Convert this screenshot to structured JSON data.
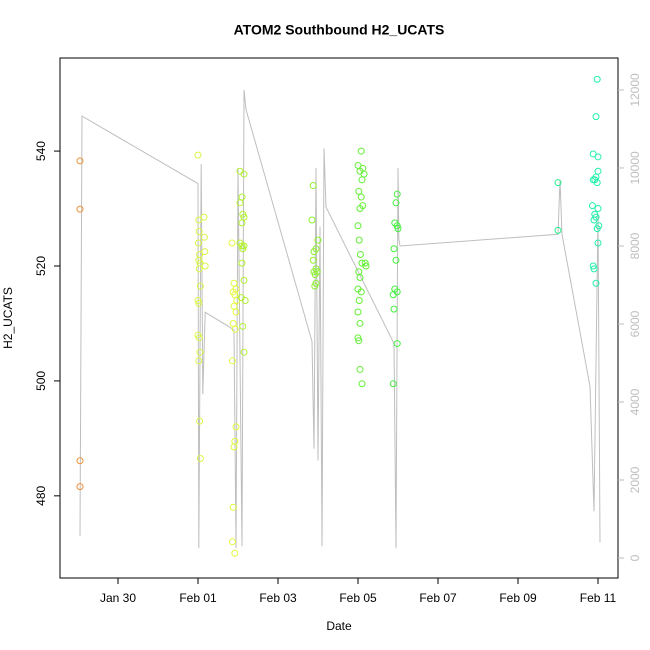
{
  "chart_data": {
    "type": "scatter",
    "title": "ATOM2 Southbound H2_UCATS",
    "x_label": "Date",
    "y_label": "H2_UCATS",
    "xlim": [
      28.55,
      42.5
    ],
    "xticks": [
      {
        "value": 30,
        "label": "Jan 30"
      },
      {
        "value": 32,
        "label": "Feb 01"
      },
      {
        "value": 34,
        "label": "Feb 03"
      },
      {
        "value": 36,
        "label": "Feb 05"
      },
      {
        "value": 38,
        "label": "Feb 07"
      },
      {
        "value": 40,
        "label": "Feb 09"
      },
      {
        "value": 42,
        "label": "Feb 11"
      }
    ],
    "ylim": [
      465.7,
      556.2
    ],
    "yticks": [
      480,
      500,
      520,
      540
    ],
    "y2lim": [
      -513,
      12820
    ],
    "y2ticks": [
      0,
      2000,
      4000,
      6000,
      8000,
      10000,
      12000
    ],
    "series": [
      {
        "color": "#f0903a",
        "x": [
          29.05,
          29.05,
          29.05,
          29.05
        ],
        "values": [
          538.3,
          529.9,
          486.1,
          481.6
        ]
      },
      {
        "color": "#dcf54a",
        "x": [
          32.0,
          32.02,
          32.03,
          32.01,
          32.04,
          32.02,
          32.05,
          32.03,
          32.06,
          32.0,
          32.02,
          32.0,
          32.03,
          32.05,
          32.02,
          32.04,
          32.06,
          32.15,
          32.16,
          32.17,
          32.18
        ],
        "values": [
          539.3,
          528,
          526,
          524,
          522,
          521,
          520.5,
          519.5,
          516.5,
          514,
          513.5,
          508,
          507.5,
          505,
          503.5,
          493,
          486.5,
          528.5,
          525,
          522.5,
          520
        ]
      },
      {
        "color": "#e4fa40",
        "x": [
          32.85,
          32.9,
          32.95,
          32.88,
          32.92,
          32.97,
          32.9,
          32.95,
          32.88,
          32.93,
          32.86,
          32.95,
          32.92,
          32.9,
          32.88,
          32.86,
          32.92
        ],
        "values": [
          524,
          517,
          516,
          515.5,
          515,
          514,
          513,
          512,
          510,
          509,
          503.5,
          492,
          489.5,
          488.5,
          478,
          472,
          470
        ]
      },
      {
        "color": "#b2f232",
        "x": [
          33.05,
          33.15,
          33.1,
          33.05,
          33.12,
          33.15,
          33.1,
          33.05,
          33.1,
          33.15,
          33.12,
          33.1,
          33.15,
          33.08,
          33.18,
          33.12,
          33.15
        ],
        "values": [
          536.5,
          536,
          532,
          531,
          529,
          528.5,
          527.5,
          524,
          523.5,
          523.5,
          523,
          520.5,
          517.5,
          514.5,
          514,
          509.5,
          505
        ]
      },
      {
        "color": "#8ef032",
        "x": [
          34.88,
          34.85,
          35.0,
          34.95,
          34.9,
          34.88,
          34.95,
          34.9,
          34.98,
          34.93,
          34.95,
          34.92
        ],
        "values": [
          534,
          528,
          524.5,
          523,
          522.5,
          521,
          519.5,
          519,
          519,
          518.5,
          517,
          516.5
        ]
      },
      {
        "color": "#62f034",
        "x": [
          36.0,
          36.05,
          36.1,
          36.02,
          36.08,
          36.05,
          36.0,
          36.03,
          36.06,
          36.1,
          36.02,
          36.05,
          36.0,
          36.08,
          36.03,
          36.0,
          36.05,
          36.0,
          36.02,
          36.05,
          36.1,
          36.08,
          36.12,
          36.15,
          36.12,
          36.18,
          36.2
        ],
        "values": [
          537.5,
          536.5,
          535,
          533,
          532,
          530,
          527,
          524.5,
          522,
          520.5,
          519,
          518,
          516,
          515.5,
          514,
          512,
          510,
          507.5,
          507,
          502,
          499.5,
          540,
          537,
          536,
          530.5,
          520.5,
          520
        ]
      },
      {
        "color": "#44f040",
        "x": [
          36.98,
          36.95,
          36.92,
          36.98,
          37.0,
          36.9,
          36.95,
          36.92,
          36.98,
          36.88,
          36.9,
          36.98,
          36.88
        ],
        "values": [
          532.5,
          531,
          527.5,
          527,
          526.5,
          523,
          521,
          516,
          515.5,
          515,
          512.5,
          506.5,
          499.5
        ]
      },
      {
        "color": "#22f08e",
        "x": [
          41.0,
          41.0
        ],
        "values": [
          534.5,
          526.2
        ]
      },
      {
        "color": "#22f0aa",
        "x": [
          41.98,
          41.95,
          41.88,
          42.0,
          42.0,
          41.95,
          41.88,
          41.92,
          41.98,
          41.86,
          42.0,
          41.92,
          41.95,
          41.9,
          42.02,
          41.98,
          42.0,
          41.88,
          41.9,
          41.95
        ],
        "values": [
          552.5,
          546,
          539.5,
          539,
          536.5,
          535.5,
          535,
          535,
          534.5,
          530.5,
          530,
          529,
          528.5,
          528,
          527,
          526.5,
          524,
          520,
          519.5,
          517
        ]
      },
      {
        "axis": "y2",
        "color": "#bebebe",
        "x": [
          29.05,
          29.1,
          32.0,
          32.02,
          32.08,
          32.12,
          32.18,
          32.9,
          32.95,
          33.0,
          33.1,
          33.15,
          33.2,
          34.85,
          34.9,
          34.95,
          35.0,
          35.05,
          35.1,
          35.15,
          35.2,
          36.9,
          36.95,
          37.0,
          37.02,
          37.05,
          41.0,
          41.05,
          41.1,
          41.8,
          41.9,
          42.0,
          42.05
        ],
        "values": [
          560,
          11330,
          9600,
          250,
          10100,
          4200,
          6300,
          5850,
          250,
          10000,
          300,
          12000,
          11500,
          5550,
          2800,
          10000,
          2500,
          8500,
          300,
          10500,
          9000,
          5500,
          250,
          10000,
          8200,
          8000,
          8300,
          9700,
          8300,
          4400,
          1200,
          8800,
          400
        ]
      }
    ]
  }
}
